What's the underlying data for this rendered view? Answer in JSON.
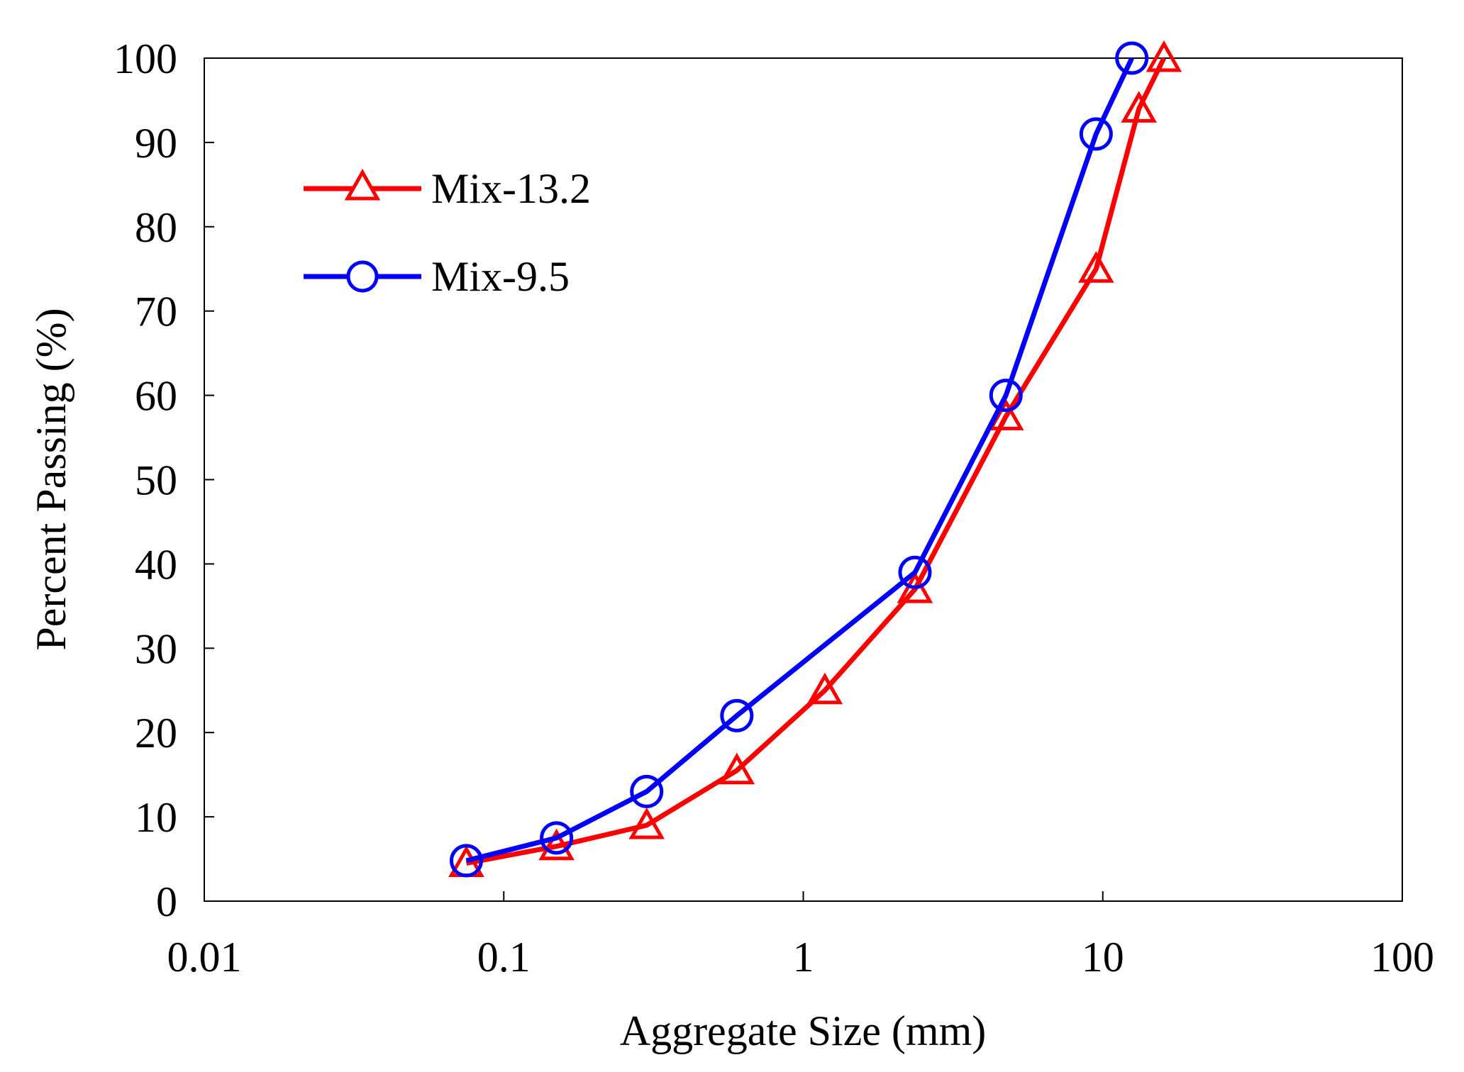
{
  "chart_data": {
    "type": "line",
    "x_scale": "log",
    "xlabel": "Aggregate Size (mm)",
    "ylabel": "Percent Passing (%)",
    "xlim": [
      0.01,
      100
    ],
    "ylim": [
      0,
      100
    ],
    "x_ticks": [
      0.01,
      0.1,
      1,
      10,
      100
    ],
    "x_tick_labels": [
      "0.01",
      "0.1",
      "1",
      "10",
      "100"
    ],
    "y_ticks": [
      0,
      10,
      20,
      30,
      40,
      50,
      60,
      70,
      80,
      90,
      100
    ],
    "y_tick_labels": [
      "0",
      "10",
      "20",
      "30",
      "40",
      "50",
      "60",
      "70",
      "80",
      "90",
      "100"
    ],
    "grid": false,
    "legend_position": "top-left",
    "series": [
      {
        "name": "Mix-13.2",
        "color": "#ff0000",
        "marker": "triangle",
        "x": [
          0.075,
          0.15,
          0.3,
          0.6,
          1.18,
          2.36,
          4.75,
          9.5,
          13.2,
          16
        ],
        "y": [
          4.5,
          6.5,
          9,
          15.5,
          25,
          37,
          57.5,
          75,
          94,
          100
        ]
      },
      {
        "name": "Mix-9.5",
        "color": "#0000ff",
        "marker": "circle",
        "x": [
          0.075,
          0.15,
          0.3,
          0.6,
          2.36,
          4.75,
          9.5,
          12.5
        ],
        "y": [
          4.8,
          7.5,
          13,
          22,
          39,
          60,
          91,
          100
        ]
      }
    ]
  }
}
